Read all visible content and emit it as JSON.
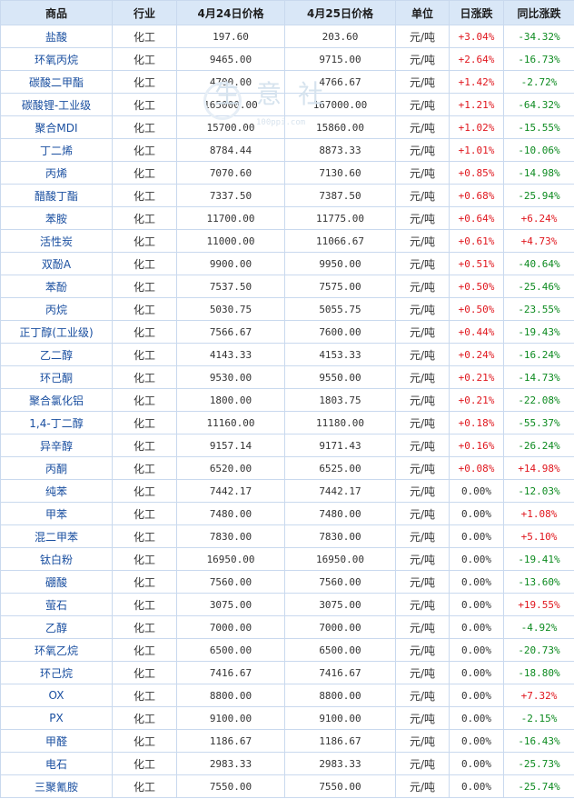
{
  "headers": [
    "商品",
    "行业",
    "4月24日价格",
    "4月25日价格",
    "单位",
    "日涨跌",
    "同比涨跌"
  ],
  "watermark": {
    "text": "生意社",
    "url": "100ppi.com"
  },
  "rows": [
    {
      "name": "盐酸",
      "industry": "化工",
      "p1": "197.60",
      "p2": "203.60",
      "unit": "元/吨",
      "day": "+3.04%",
      "day_dir": "up",
      "yoy": "-34.32%",
      "yoy_dir": "down"
    },
    {
      "name": "环氧丙烷",
      "industry": "化工",
      "p1": "9465.00",
      "p2": "9715.00",
      "unit": "元/吨",
      "day": "+2.64%",
      "day_dir": "up",
      "yoy": "-16.73%",
      "yoy_dir": "down"
    },
    {
      "name": "碳酸二甲酯",
      "industry": "化工",
      "p1": "4700.00",
      "p2": "4766.67",
      "unit": "元/吨",
      "day": "+1.42%",
      "day_dir": "up",
      "yoy": "-2.72%",
      "yoy_dir": "down"
    },
    {
      "name": "碳酸锂-工业级",
      "industry": "化工",
      "p1": "165000.00",
      "p2": "167000.00",
      "unit": "元/吨",
      "day": "+1.21%",
      "day_dir": "up",
      "yoy": "-64.32%",
      "yoy_dir": "down"
    },
    {
      "name": "聚合MDI",
      "industry": "化工",
      "p1": "15700.00",
      "p2": "15860.00",
      "unit": "元/吨",
      "day": "+1.02%",
      "day_dir": "up",
      "yoy": "-15.55%",
      "yoy_dir": "down"
    },
    {
      "name": "丁二烯",
      "industry": "化工",
      "p1": "8784.44",
      "p2": "8873.33",
      "unit": "元/吨",
      "day": "+1.01%",
      "day_dir": "up",
      "yoy": "-10.06%",
      "yoy_dir": "down"
    },
    {
      "name": "丙烯",
      "industry": "化工",
      "p1": "7070.60",
      "p2": "7130.60",
      "unit": "元/吨",
      "day": "+0.85%",
      "day_dir": "up",
      "yoy": "-14.98%",
      "yoy_dir": "down"
    },
    {
      "name": "醋酸丁酯",
      "industry": "化工",
      "p1": "7337.50",
      "p2": "7387.50",
      "unit": "元/吨",
      "day": "+0.68%",
      "day_dir": "up",
      "yoy": "-25.94%",
      "yoy_dir": "down"
    },
    {
      "name": "苯胺",
      "industry": "化工",
      "p1": "11700.00",
      "p2": "11775.00",
      "unit": "元/吨",
      "day": "+0.64%",
      "day_dir": "up",
      "yoy": "+6.24%",
      "yoy_dir": "up"
    },
    {
      "name": "活性炭",
      "industry": "化工",
      "p1": "11000.00",
      "p2": "11066.67",
      "unit": "元/吨",
      "day": "+0.61%",
      "day_dir": "up",
      "yoy": "+4.73%",
      "yoy_dir": "up"
    },
    {
      "name": "双酚A",
      "industry": "化工",
      "p1": "9900.00",
      "p2": "9950.00",
      "unit": "元/吨",
      "day": "+0.51%",
      "day_dir": "up",
      "yoy": "-40.64%",
      "yoy_dir": "down"
    },
    {
      "name": "苯酚",
      "industry": "化工",
      "p1": "7537.50",
      "p2": "7575.00",
      "unit": "元/吨",
      "day": "+0.50%",
      "day_dir": "up",
      "yoy": "-25.46%",
      "yoy_dir": "down"
    },
    {
      "name": "丙烷",
      "industry": "化工",
      "p1": "5030.75",
      "p2": "5055.75",
      "unit": "元/吨",
      "day": "+0.50%",
      "day_dir": "up",
      "yoy": "-23.55%",
      "yoy_dir": "down"
    },
    {
      "name": "正丁醇(工业级)",
      "industry": "化工",
      "p1": "7566.67",
      "p2": "7600.00",
      "unit": "元/吨",
      "day": "+0.44%",
      "day_dir": "up",
      "yoy": "-19.43%",
      "yoy_dir": "down"
    },
    {
      "name": "乙二醇",
      "industry": "化工",
      "p1": "4143.33",
      "p2": "4153.33",
      "unit": "元/吨",
      "day": "+0.24%",
      "day_dir": "up",
      "yoy": "-16.24%",
      "yoy_dir": "down"
    },
    {
      "name": "环己酮",
      "industry": "化工",
      "p1": "9530.00",
      "p2": "9550.00",
      "unit": "元/吨",
      "day": "+0.21%",
      "day_dir": "up",
      "yoy": "-14.73%",
      "yoy_dir": "down"
    },
    {
      "name": "聚合氯化铝",
      "industry": "化工",
      "p1": "1800.00",
      "p2": "1803.75",
      "unit": "元/吨",
      "day": "+0.21%",
      "day_dir": "up",
      "yoy": "-22.08%",
      "yoy_dir": "down"
    },
    {
      "name": "1,4-丁二醇",
      "industry": "化工",
      "p1": "11160.00",
      "p2": "11180.00",
      "unit": "元/吨",
      "day": "+0.18%",
      "day_dir": "up",
      "yoy": "-55.37%",
      "yoy_dir": "down"
    },
    {
      "name": "异辛醇",
      "industry": "化工",
      "p1": "9157.14",
      "p2": "9171.43",
      "unit": "元/吨",
      "day": "+0.16%",
      "day_dir": "up",
      "yoy": "-26.24%",
      "yoy_dir": "down"
    },
    {
      "name": "丙酮",
      "industry": "化工",
      "p1": "6520.00",
      "p2": "6525.00",
      "unit": "元/吨",
      "day": "+0.08%",
      "day_dir": "up",
      "yoy": "+14.98%",
      "yoy_dir": "up"
    },
    {
      "name": "纯苯",
      "industry": "化工",
      "p1": "7442.17",
      "p2": "7442.17",
      "unit": "元/吨",
      "day": "0.00%",
      "day_dir": "flat",
      "yoy": "-12.03%",
      "yoy_dir": "down"
    },
    {
      "name": "甲苯",
      "industry": "化工",
      "p1": "7480.00",
      "p2": "7480.00",
      "unit": "元/吨",
      "day": "0.00%",
      "day_dir": "flat",
      "yoy": "+1.08%",
      "yoy_dir": "up"
    },
    {
      "name": "混二甲苯",
      "industry": "化工",
      "p1": "7830.00",
      "p2": "7830.00",
      "unit": "元/吨",
      "day": "0.00%",
      "day_dir": "flat",
      "yoy": "+5.10%",
      "yoy_dir": "up"
    },
    {
      "name": "钛白粉",
      "industry": "化工",
      "p1": "16950.00",
      "p2": "16950.00",
      "unit": "元/吨",
      "day": "0.00%",
      "day_dir": "flat",
      "yoy": "-19.41%",
      "yoy_dir": "down"
    },
    {
      "name": "硼酸",
      "industry": "化工",
      "p1": "7560.00",
      "p2": "7560.00",
      "unit": "元/吨",
      "day": "0.00%",
      "day_dir": "flat",
      "yoy": "-13.60%",
      "yoy_dir": "down"
    },
    {
      "name": "萤石",
      "industry": "化工",
      "p1": "3075.00",
      "p2": "3075.00",
      "unit": "元/吨",
      "day": "0.00%",
      "day_dir": "flat",
      "yoy": "+19.55%",
      "yoy_dir": "up"
    },
    {
      "name": "乙醇",
      "industry": "化工",
      "p1": "7000.00",
      "p2": "7000.00",
      "unit": "元/吨",
      "day": "0.00%",
      "day_dir": "flat",
      "yoy": "-4.92%",
      "yoy_dir": "down"
    },
    {
      "name": "环氧乙烷",
      "industry": "化工",
      "p1": "6500.00",
      "p2": "6500.00",
      "unit": "元/吨",
      "day": "0.00%",
      "day_dir": "flat",
      "yoy": "-20.73%",
      "yoy_dir": "down"
    },
    {
      "name": "环己烷",
      "industry": "化工",
      "p1": "7416.67",
      "p2": "7416.67",
      "unit": "元/吨",
      "day": "0.00%",
      "day_dir": "flat",
      "yoy": "-18.80%",
      "yoy_dir": "down"
    },
    {
      "name": "OX",
      "industry": "化工",
      "p1": "8800.00",
      "p2": "8800.00",
      "unit": "元/吨",
      "day": "0.00%",
      "day_dir": "flat",
      "yoy": "+7.32%",
      "yoy_dir": "up"
    },
    {
      "name": "PX",
      "industry": "化工",
      "p1": "9100.00",
      "p2": "9100.00",
      "unit": "元/吨",
      "day": "0.00%",
      "day_dir": "flat",
      "yoy": "-2.15%",
      "yoy_dir": "down"
    },
    {
      "name": "甲醛",
      "industry": "化工",
      "p1": "1186.67",
      "p2": "1186.67",
      "unit": "元/吨",
      "day": "0.00%",
      "day_dir": "flat",
      "yoy": "-16.43%",
      "yoy_dir": "down"
    },
    {
      "name": "电石",
      "industry": "化工",
      "p1": "2983.33",
      "p2": "2983.33",
      "unit": "元/吨",
      "day": "0.00%",
      "day_dir": "flat",
      "yoy": "-25.73%",
      "yoy_dir": "down"
    },
    {
      "name": "三聚氰胺",
      "industry": "化工",
      "p1": "7550.00",
      "p2": "7550.00",
      "unit": "元/吨",
      "day": "0.00%",
      "day_dir": "flat",
      "yoy": "-25.74%",
      "yoy_dir": "down"
    }
  ]
}
